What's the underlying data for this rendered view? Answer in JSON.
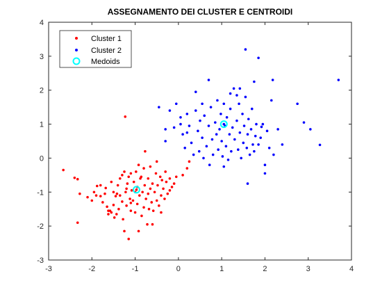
{
  "chart_data": {
    "type": "scatter",
    "title": "ASSEGNAMENTO DEI CLUSTER E CENTROIDI",
    "xlim": [
      -3,
      4
    ],
    "ylim": [
      -3,
      4
    ],
    "xticks": [
      -3,
      -2,
      -1,
      0,
      1,
      2,
      3,
      4
    ],
    "yticks": [
      -3,
      -2,
      -1,
      0,
      1,
      2,
      3,
      4
    ],
    "grid": false,
    "legend": {
      "placement": "top-left"
    },
    "series": [
      {
        "name": "Cluster 1",
        "color": "#ff0000",
        "marker": "dot",
        "points": [
          [
            -2.66,
            -0.35
          ],
          [
            -2.4,
            -0.58
          ],
          [
            -2.33,
            -0.62
          ],
          [
            -2.28,
            -1.05
          ],
          [
            -2.33,
            -1.9
          ],
          [
            -2.1,
            -1.15
          ],
          [
            -2.0,
            -1.25
          ],
          [
            -1.9,
            -1.1
          ],
          [
            -1.88,
            -0.82
          ],
          [
            -1.8,
            -0.8
          ],
          [
            -1.8,
            -1.12
          ],
          [
            -1.75,
            -1.3
          ],
          [
            -1.65,
            -1.43
          ],
          [
            -1.62,
            -1.55
          ],
          [
            -1.58,
            -1.55
          ],
          [
            -1.55,
            -0.7
          ],
          [
            -1.5,
            -1.0
          ],
          [
            -1.5,
            -1.38
          ],
          [
            -1.45,
            -1.12
          ],
          [
            -1.43,
            -1.65
          ],
          [
            -1.4,
            -0.8
          ],
          [
            -1.38,
            -1.5
          ],
          [
            -1.35,
            -0.6
          ],
          [
            -1.35,
            -1.1
          ],
          [
            -1.3,
            -0.5
          ],
          [
            -1.28,
            -1.8
          ],
          [
            -1.25,
            -0.4
          ],
          [
            -1.22,
            -1.0
          ],
          [
            -1.2,
            -0.9
          ],
          [
            -1.2,
            -1.4
          ],
          [
            -1.18,
            -0.75
          ],
          [
            -1.15,
            -0.55
          ],
          [
            -1.12,
            -1.2
          ],
          [
            -1.1,
            -0.45
          ],
          [
            -1.1,
            -1.55
          ],
          [
            -1.08,
            -0.95
          ],
          [
            -1.05,
            -1.25
          ],
          [
            -1.03,
            -0.7
          ],
          [
            -1.0,
            -1.0
          ],
          [
            -1.0,
            -1.6
          ],
          [
            -0.98,
            -0.4
          ],
          [
            -0.95,
            -0.85
          ],
          [
            -0.95,
            -1.35
          ],
          [
            -0.92,
            -0.2
          ],
          [
            -0.9,
            -1.1
          ],
          [
            -0.88,
            -0.6
          ],
          [
            -0.85,
            -1.7
          ],
          [
            -0.83,
            -1.0
          ],
          [
            -0.8,
            -0.3
          ],
          [
            -0.8,
            -1.45
          ],
          [
            -0.78,
            -0.8
          ],
          [
            -0.75,
            -1.2
          ],
          [
            -0.72,
            -1.95
          ],
          [
            -0.7,
            -0.6
          ],
          [
            -0.7,
            -1.05
          ],
          [
            -0.68,
            -1.5
          ],
          [
            -0.65,
            -0.9
          ],
          [
            -0.62,
            -1.3
          ],
          [
            -0.6,
            -0.75
          ],
          [
            -0.58,
            -1.55
          ],
          [
            -0.55,
            -1.0
          ],
          [
            -0.52,
            -0.45
          ],
          [
            -0.5,
            -1.25
          ],
          [
            -0.48,
            -0.8
          ],
          [
            -0.45,
            -1.4
          ],
          [
            -0.42,
            -0.55
          ],
          [
            -0.4,
            -1.1
          ],
          [
            -0.38,
            -0.65
          ],
          [
            -0.35,
            -0.9
          ],
          [
            -0.32,
            -1.2
          ],
          [
            -0.3,
            -0.4
          ],
          [
            -0.28,
            -0.7
          ],
          [
            -0.25,
            -1.05
          ],
          [
            -0.2,
            -0.6
          ],
          [
            -0.15,
            -0.85
          ],
          [
            -0.1,
            -0.75
          ],
          [
            -0.05,
            -0.55
          ],
          [
            0.1,
            -0.5
          ],
          [
            0.2,
            -0.3
          ],
          [
            0.25,
            -0.1
          ],
          [
            -1.55,
            -1.6
          ],
          [
            -1.48,
            -1.75
          ],
          [
            -1.62,
            -1.65
          ],
          [
            -1.25,
            -2.15
          ],
          [
            -1.15,
            -2.38
          ],
          [
            -0.92,
            -2.15
          ],
          [
            -0.6,
            -1.95
          ],
          [
            -1.3,
            -1.28
          ],
          [
            -0.86,
            -0.55
          ],
          [
            -0.65,
            -0.25
          ],
          [
            -0.5,
            -0.1
          ],
          [
            -1.23,
            1.22
          ],
          [
            -1.7,
            -1.05
          ],
          [
            -1.68,
            -0.88
          ],
          [
            -0.77,
            0.2
          ],
          [
            -1.1,
            -1.32
          ],
          [
            -0.4,
            -1.6
          ],
          [
            -1.42,
            -1.05
          ],
          [
            -1.95,
            -1.0
          ],
          [
            -0.2,
            -0.95
          ]
        ]
      },
      {
        "name": "Cluster 2",
        "color": "#0000ff",
        "marker": "dot",
        "points": [
          [
            -0.45,
            1.5
          ],
          [
            -0.3,
            0.85
          ],
          [
            -0.2,
            1.4
          ],
          [
            -0.1,
            0.9
          ],
          [
            -0.05,
            1.6
          ],
          [
            0.05,
            1.0
          ],
          [
            0.1,
            0.7
          ],
          [
            0.15,
            0.3
          ],
          [
            0.2,
            1.3
          ],
          [
            0.25,
            0.95
          ],
          [
            0.3,
            0.45
          ],
          [
            0.35,
            0.1
          ],
          [
            0.4,
            1.4
          ],
          [
            0.45,
            0.8
          ],
          [
            0.48,
            0.2
          ],
          [
            0.5,
            1.1
          ],
          [
            0.55,
            0.6
          ],
          [
            0.58,
            0.0
          ],
          [
            0.6,
            1.25
          ],
          [
            0.65,
            0.35
          ],
          [
            0.7,
            0.95
          ],
          [
            0.72,
            -0.2
          ],
          [
            0.75,
            1.5
          ],
          [
            0.78,
            0.55
          ],
          [
            0.8,
            0.1
          ],
          [
            0.85,
            1.05
          ],
          [
            0.88,
            0.7
          ],
          [
            0.9,
            1.7
          ],
          [
            0.92,
            0.25
          ],
          [
            0.95,
            0.85
          ],
          [
            0.98,
            1.3
          ],
          [
            1.0,
            0.5
          ],
          [
            1.02,
            0.05
          ],
          [
            1.05,
            1.6
          ],
          [
            1.08,
            0.95
          ],
          [
            1.1,
            0.35
          ],
          [
            1.12,
            1.2
          ],
          [
            1.15,
            -0.05
          ],
          [
            1.18,
            0.7
          ],
          [
            1.2,
            1.45
          ],
          [
            1.22,
            0.2
          ],
          [
            1.25,
            0.9
          ],
          [
            1.28,
            2.05
          ],
          [
            1.3,
            0.55
          ],
          [
            1.35,
            1.1
          ],
          [
            1.38,
            0.25
          ],
          [
            1.4,
            1.6
          ],
          [
            1.42,
            0.75
          ],
          [
            1.45,
            0.0
          ],
          [
            1.48,
            1.3
          ],
          [
            1.5,
            0.45
          ],
          [
            1.52,
            0.95
          ],
          [
            1.55,
            1.8
          ],
          [
            1.58,
            0.3
          ],
          [
            1.6,
            0.7
          ],
          [
            1.62,
            1.15
          ],
          [
            1.65,
            0.1
          ],
          [
            1.68,
            0.85
          ],
          [
            1.7,
            1.45
          ],
          [
            1.72,
            0.4
          ],
          [
            1.75,
            0.2
          ],
          [
            1.78,
            0.65
          ],
          [
            1.8,
            1.0
          ],
          [
            1.85,
            0.4
          ],
          [
            1.9,
            0.6
          ],
          [
            1.95,
            1.0
          ],
          [
            2.0,
            -0.2
          ],
          [
            2.05,
            0.8
          ],
          [
            2.1,
            0.3
          ],
          [
            2.15,
            1.7
          ],
          [
            2.2,
            0.1
          ],
          [
            2.3,
            0.85
          ],
          [
            2.4,
            0.4
          ],
          [
            1.55,
            3.2
          ],
          [
            1.85,
            2.95
          ],
          [
            2.18,
            2.3
          ],
          [
            1.42,
            2.05
          ],
          [
            1.75,
            2.25
          ],
          [
            1.92,
            0.92
          ],
          [
            2.75,
            1.6
          ],
          [
            2.9,
            1.05
          ],
          [
            3.05,
            0.85
          ],
          [
            3.27,
            0.39
          ],
          [
            3.7,
            2.3
          ],
          [
            -0.3,
            0.5
          ],
          [
            0.05,
            1.2
          ],
          [
            0.4,
            1.95
          ],
          [
            0.7,
            2.3
          ],
          [
            1.05,
            -0.25
          ],
          [
            1.6,
            -0.75
          ],
          [
            2.0,
            -0.45
          ],
          [
            1.2,
            1.9
          ],
          [
            0.55,
            1.6
          ],
          [
            1.35,
            1.85
          ],
          [
            0.2,
            0.75
          ]
        ]
      },
      {
        "name": "Medoids",
        "color": "#00ffff",
        "marker": "circle",
        "points": [
          [
            -0.97,
            -0.93
          ],
          [
            1.05,
            1.0
          ]
        ]
      }
    ]
  }
}
